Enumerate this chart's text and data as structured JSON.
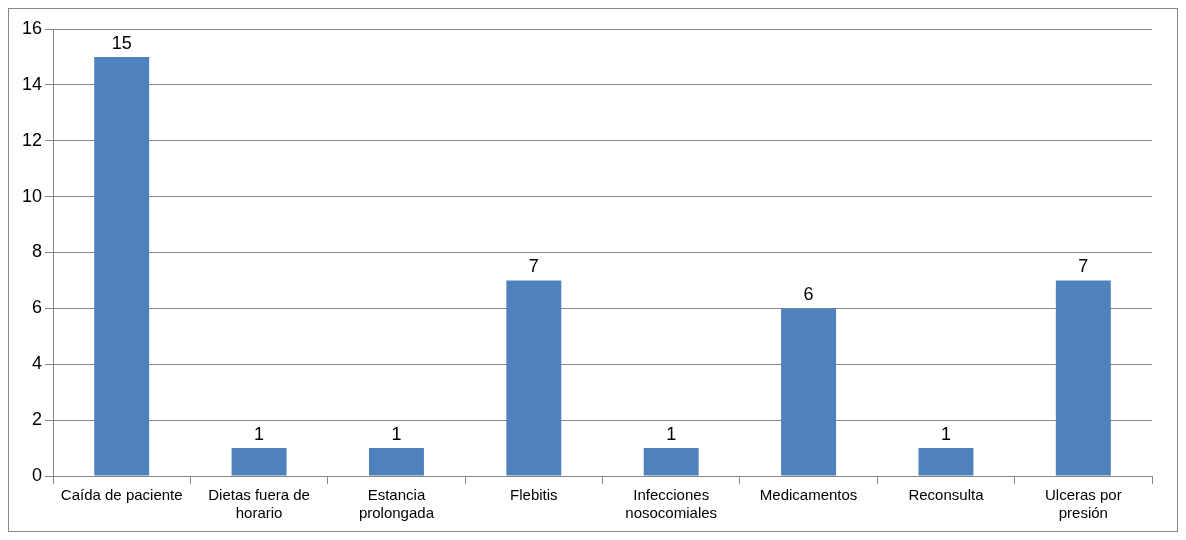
{
  "chart_data": {
    "type": "bar",
    "categories": [
      "Caída de paciente",
      "Dietas fuera de horario",
      "Estancia prolongada",
      "Flebitis",
      "Infecciones nosocomiales",
      "Medicamentos",
      "Reconsulta",
      "Ulceras por presión"
    ],
    "values": [
      15,
      1,
      1,
      7,
      1,
      6,
      1,
      7
    ],
    "color": "#4f81bd",
    "ylim": [
      0,
      16
    ],
    "yticks": [
      0,
      2,
      4,
      6,
      8,
      10,
      12,
      14,
      16
    ],
    "grid": "y",
    "legend": false,
    "data_labels": true
  }
}
